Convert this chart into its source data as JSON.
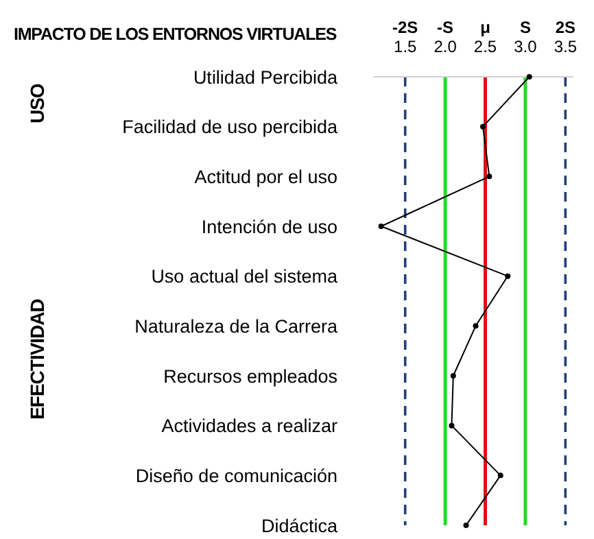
{
  "chart_data": {
    "type": "line",
    "title": "IMPACTO DE LOS ENTORNOS VIRTUALES",
    "orientation": "horizontal",
    "categories": [
      "Utilidad Percibida",
      "Facilidad de uso percibida",
      "Actitud por el uso",
      "Intención de uso",
      "Uso actual del sistema",
      "Naturaleza de la Carrera",
      "Recursos empleados",
      "Actividades a realizar",
      "Diseño de comunicación",
      "Didáctica"
    ],
    "series": [
      {
        "color": "#000000",
        "values": [
          3.05,
          2.47,
          2.55,
          1.2,
          2.78,
          2.38,
          2.1,
          2.08,
          2.69,
          2.26
        ]
      }
    ],
    "xlim": [
      1.1,
      3.6
    ],
    "xticks": [
      {
        "value": 1.5,
        "label": "1.5"
      },
      {
        "value": 2.0,
        "label": "2.0"
      },
      {
        "value": 2.5,
        "label": "2.5"
      },
      {
        "value": 3.0,
        "label": "3.0"
      },
      {
        "value": 3.5,
        "label": "3.5"
      }
    ],
    "ref_lines": [
      {
        "axis": "x",
        "value": 1.5,
        "label": "-2S",
        "color": "#1f3f7a",
        "line_style": "dashed"
      },
      {
        "axis": "x",
        "value": 2.0,
        "label": "-S",
        "color": "#22dd22",
        "line_style": "solid"
      },
      {
        "axis": "x",
        "value": 2.5,
        "label": "μ",
        "color": "#e01010",
        "line_style": "solid"
      },
      {
        "axis": "x",
        "value": 3.0,
        "label": "S",
        "color": "#22dd22",
        "line_style": "solid"
      },
      {
        "axis": "x",
        "value": 3.5,
        "label": "2S",
        "color": "#1f3f7a",
        "line_style": "dashed"
      }
    ],
    "annotations": [
      "USO",
      "EFECTIVIDAD"
    ],
    "marker": "circle",
    "line_style": "solid",
    "grid": false,
    "legend": false
  }
}
